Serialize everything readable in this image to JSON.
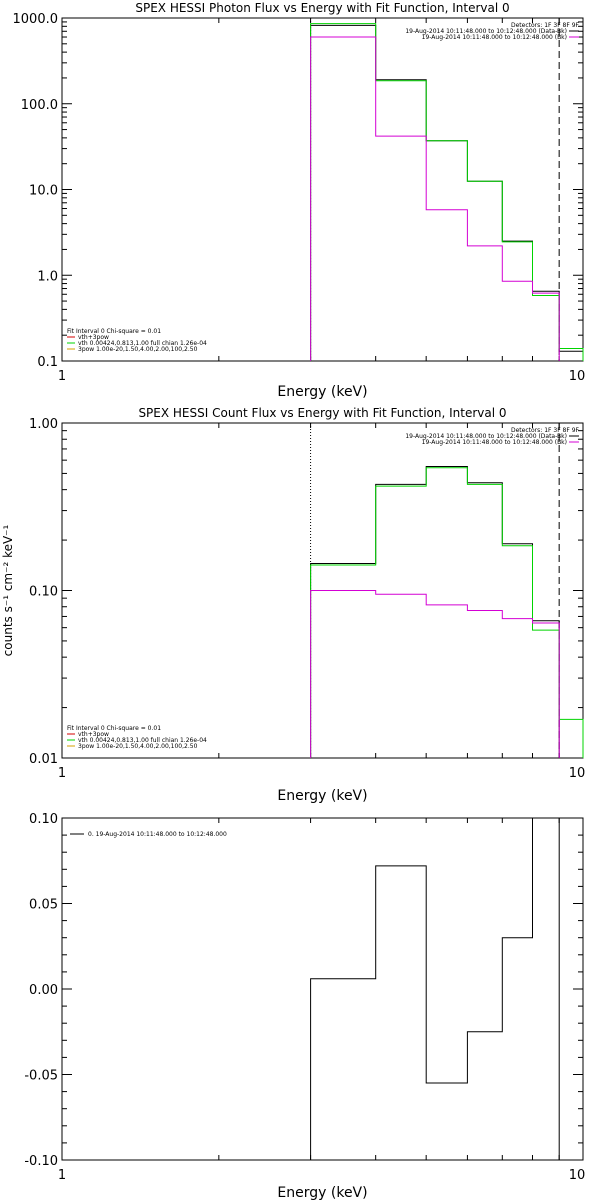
{
  "chart_data": [
    {
      "type": "line",
      "title": "SPEX HESSI Photon Flux vs Energy with Fit Function, Interval 0",
      "xlabel": "Energy (keV)",
      "ylabel": "",
      "xscale": "log",
      "yscale": "log",
      "xlim": [
        1,
        10
      ],
      "ylim": [
        0.1,
        1000
      ],
      "xticks": [
        1,
        10
      ],
      "xtick_labels": [
        "1",
        "10"
      ],
      "yticks": [
        0.1,
        1,
        10,
        100,
        1000
      ],
      "ytick_labels": [
        "0.1",
        "1.0",
        "10.0",
        "100.0",
        "1000.0"
      ],
      "grid": false,
      "vlines": [
        {
          "x": 3.0,
          "style": "dotted",
          "color": "#000000"
        },
        {
          "x": 9.0,
          "style": "dashed",
          "color": "#000000"
        }
      ],
      "info_legend": {
        "placement": "top-right",
        "lines": [
          {
            "text": "Detectors: 1F 3F 8F 9F",
            "color": ""
          },
          {
            "text": "19-Aug-2014 10:11:48.000 to 10:12:48.000 (Data-Bk)",
            "color": "#000000"
          },
          {
            "text": "19-Aug-2014 10:11:48.000 to 10:12:48.000 (Bk)",
            "color": "#d400d4"
          }
        ]
      },
      "fit_legend": {
        "placement": "bottom-left",
        "lines": [
          {
            "text": "Fit Interval 0   Chi-square = 0.01",
            "color": ""
          },
          {
            "text": "vth+3pow",
            "color": "#d40000"
          },
          {
            "text": "vth 0.00424,0.813,1.00   full chian 1.26e-04",
            "color": "#00d400"
          },
          {
            "text": "3pow 1.00e-20,1.50,4.00,2.00,100,2.50",
            "color": "#d4a000"
          }
        ]
      },
      "edges": [
        3.0,
        4.0,
        5.0,
        6.0,
        7.0,
        8.0,
        9.0,
        10.0
      ],
      "series": [
        {
          "name": "",
          "color": "#000000",
          "values": [
            820,
            190,
            37,
            12.5,
            2.5,
            0.65,
            0.13
          ]
        },
        {
          "name": "",
          "color": "#00d400",
          "values": [
            860,
            185,
            37,
            12.5,
            2.45,
            0.58,
            0.14
          ]
        },
        {
          "name": "",
          "color": "#d400d4",
          "values": [
            600,
            42,
            5.8,
            2.2,
            0.85,
            0.62,
            null
          ]
        }
      ]
    },
    {
      "type": "line",
      "title": "SPEX HESSI Count Flux vs Energy with Fit Function, Interval 0",
      "xlabel": "Energy (keV)",
      "ylabel": "counts s⁻¹ cm⁻² keV⁻¹",
      "xscale": "log",
      "yscale": "log",
      "xlim": [
        1,
        10
      ],
      "ylim": [
        0.01,
        1.0
      ],
      "xticks": [
        1,
        10
      ],
      "xtick_labels": [
        "1",
        "10"
      ],
      "yticks": [
        0.01,
        0.1,
        1.0
      ],
      "ytick_labels": [
        "0.01",
        "0.10",
        "1.00"
      ],
      "grid": false,
      "vlines": [
        {
          "x": 3.0,
          "style": "dotted",
          "color": "#000000"
        },
        {
          "x": 9.0,
          "style": "dashed",
          "color": "#000000"
        }
      ],
      "info_legend": {
        "placement": "top-right",
        "lines": [
          {
            "text": "Detectors: 1F 3F 8F 9F",
            "color": ""
          },
          {
            "text": "19-Aug-2014 10:11:48.000 to 10:12:48.000 (Data-Bk)",
            "color": "#000000"
          },
          {
            "text": "19-Aug-2014 10:11:48.000 to 10:12:48.000 (Bk)",
            "color": "#d400d4"
          }
        ]
      },
      "fit_legend": {
        "placement": "bottom-left",
        "lines": [
          {
            "text": "Fit Interval 0   Chi-square = 0.01",
            "color": ""
          },
          {
            "text": "vth+3pow",
            "color": "#d40000"
          },
          {
            "text": "vth 0.00424,0.813,1.00   full chian 1.26e-04",
            "color": "#00d400"
          },
          {
            "text": "3pow 1.00e-20,1.50,4.00,2.00,100,2.50",
            "color": "#d4a000"
          }
        ]
      },
      "edges": [
        3.0,
        4.0,
        5.0,
        6.0,
        7.0,
        8.0,
        9.0,
        10.0
      ],
      "series": [
        {
          "name": "",
          "color": "#000000",
          "values": [
            0.145,
            0.43,
            0.55,
            0.44,
            0.19,
            0.066,
            null
          ]
        },
        {
          "name": "",
          "color": "#00d400",
          "values": [
            0.142,
            0.42,
            0.54,
            0.43,
            0.185,
            0.058,
            0.017
          ]
        },
        {
          "name": "",
          "color": "#d400d4",
          "values": [
            0.1,
            0.095,
            0.082,
            0.076,
            0.068,
            0.064,
            null
          ]
        }
      ]
    },
    {
      "type": "line",
      "title": "",
      "xlabel": "Energy (keV)",
      "ylabel": "",
      "xscale": "log",
      "yscale": "linear",
      "xlim": [
        1,
        10
      ],
      "ylim": [
        -0.1,
        0.1
      ],
      "xticks": [
        1,
        10
      ],
      "xtick_labels": [
        "1",
        "10"
      ],
      "yticks": [
        -0.1,
        -0.05,
        0.0,
        0.05,
        0.1
      ],
      "ytick_labels": [
        "-0.10",
        "-0.05",
        "0.00",
        "0.05",
        "0.10"
      ],
      "grid": false,
      "vlines": [],
      "info_legend": {
        "placement": "top-left",
        "lines": [
          {
            "text": "0. 19-Aug-2014 10:11:48.000 to 10:12:48.000",
            "color": "#000000",
            "sample": true
          }
        ]
      },
      "fit_legend": null,
      "edges": [
        3.0,
        4.0,
        5.0,
        6.0,
        7.0,
        8.0,
        9.0
      ],
      "series": [
        {
          "name": "",
          "color": "#000000",
          "values": [
            0.006,
            0.072,
            -0.055,
            -0.025,
            0.03,
            0.1
          ]
        }
      ]
    }
  ]
}
